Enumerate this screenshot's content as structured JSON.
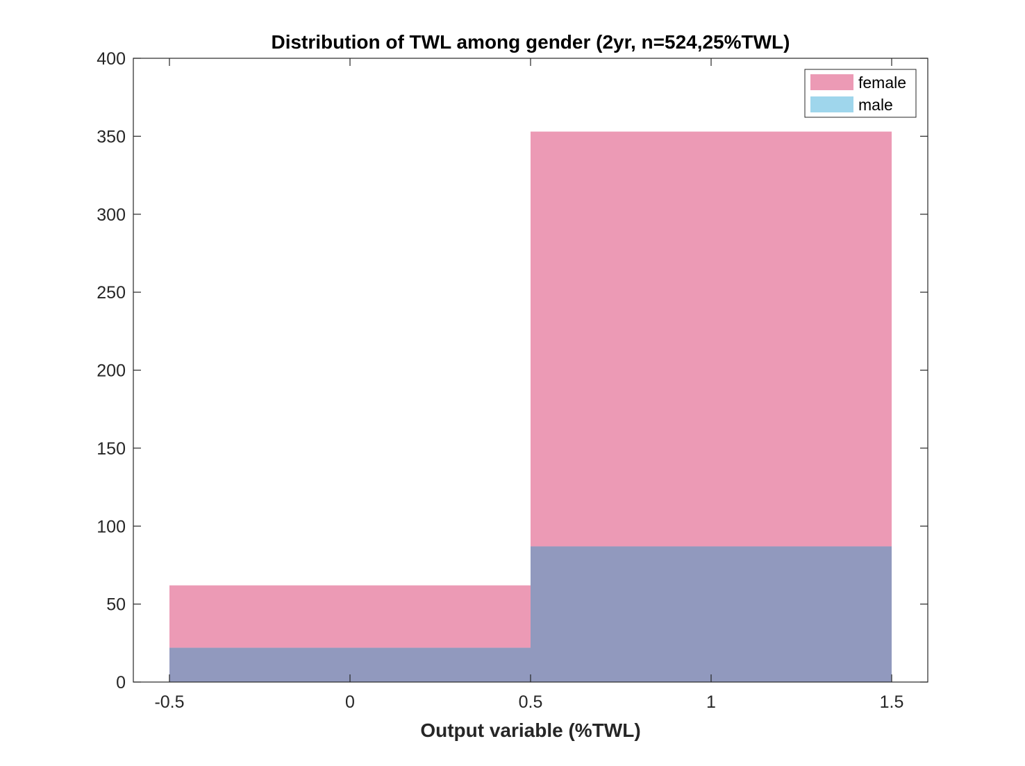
{
  "chart_data": {
    "type": "bar",
    "subtype": "overlaid-histogram",
    "title": "Distribution of TWL among gender (2yr, n=524,25%TWL)",
    "xlabel": "Output variable (%TWL)",
    "ylabel": "",
    "xlim": [
      -0.6,
      1.6
    ],
    "ylim": [
      0,
      400
    ],
    "x_ticks": [
      -0.5,
      0,
      0.5,
      1,
      1.5
    ],
    "x_tick_labels": [
      "-0.5",
      "0",
      "0.5",
      "1",
      "1.5"
    ],
    "y_ticks": [
      0,
      50,
      100,
      150,
      200,
      250,
      300,
      350,
      400
    ],
    "y_tick_labels": [
      "0",
      "50",
      "100",
      "150",
      "200",
      "250",
      "300",
      "350",
      "400"
    ],
    "bin_edges": [
      -0.5,
      0.5,
      1.5
    ],
    "series": [
      {
        "name": "female",
        "values": [
          62,
          353
        ],
        "color": "#EC9AB5"
      },
      {
        "name": "male",
        "values": [
          22,
          87
        ],
        "color": "#9FD6EC"
      }
    ],
    "overlap_color": "#9199BE",
    "grid": false,
    "legend_position": "top-right"
  }
}
